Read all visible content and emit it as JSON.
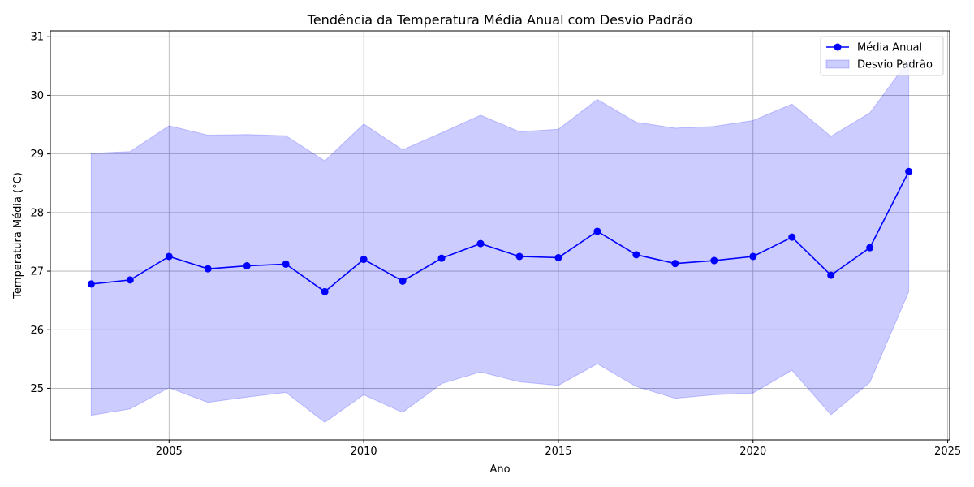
{
  "chart_data": {
    "type": "line",
    "title": "Tendência da Temperatura Média Anual com Desvio Padrão",
    "xlabel": "Ano",
    "ylabel": "Temperatura Média (°C)",
    "xlim": [
      2001.95,
      2025.05
    ],
    "ylim": [
      24.12,
      31.1
    ],
    "xticks": [
      2005,
      2010,
      2015,
      2020,
      2025
    ],
    "yticks": [
      25,
      26,
      27,
      28,
      29,
      30,
      31
    ],
    "grid": true,
    "legend_position": "top-right",
    "x": [
      2003,
      2004,
      2005,
      2006,
      2007,
      2008,
      2009,
      2010,
      2011,
      2012,
      2013,
      2014,
      2015,
      2016,
      2017,
      2018,
      2019,
      2020,
      2021,
      2022,
      2023,
      2024
    ],
    "series": [
      {
        "name": "Média Anual",
        "kind": "line",
        "color": "#0000ff",
        "values": [
          26.78,
          26.85,
          27.25,
          27.04,
          27.09,
          27.12,
          26.65,
          27.2,
          26.83,
          27.22,
          27.47,
          27.25,
          27.23,
          27.68,
          27.28,
          27.13,
          27.18,
          27.25,
          27.58,
          26.93,
          27.4,
          28.7
        ]
      },
      {
        "name": "Desvio Padrão",
        "kind": "band",
        "color": "#0000ff",
        "upper": [
          29.01,
          29.04,
          29.48,
          29.32,
          29.33,
          29.31,
          28.88,
          29.51,
          29.07,
          29.36,
          29.66,
          29.38,
          29.42,
          29.93,
          29.54,
          29.44,
          29.47,
          29.57,
          29.85,
          29.3,
          29.7,
          30.6
        ],
        "lower": [
          24.54,
          24.65,
          25.01,
          24.76,
          24.85,
          24.93,
          24.42,
          24.89,
          24.59,
          25.08,
          25.28,
          25.11,
          25.05,
          25.42,
          25.03,
          24.83,
          24.89,
          24.92,
          25.31,
          24.55,
          25.1,
          26.65
        ]
      }
    ]
  }
}
